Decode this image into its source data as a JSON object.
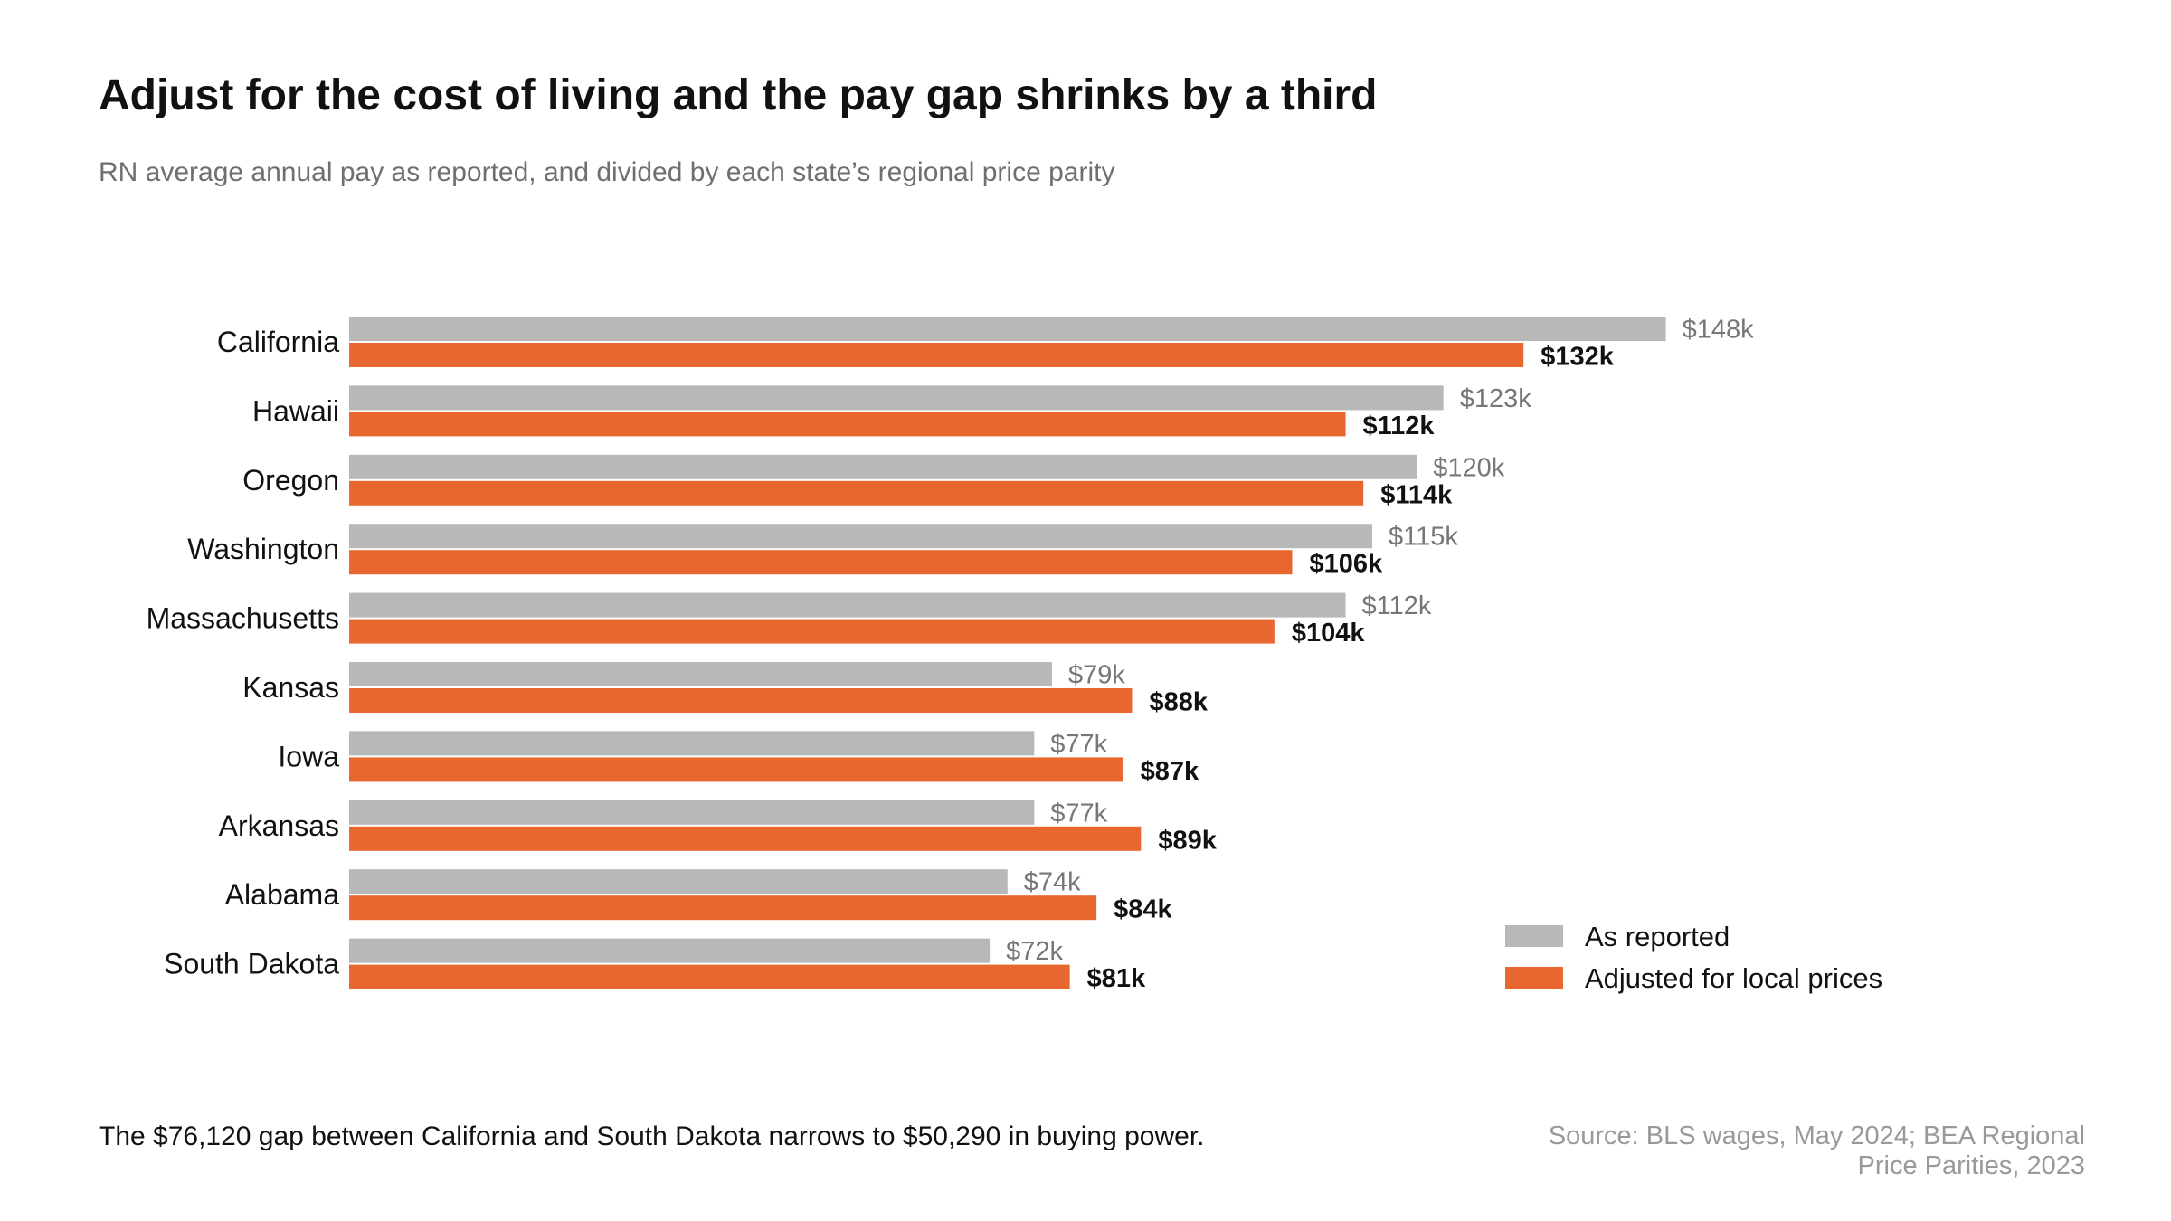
{
  "header": {
    "title": "Adjust for the cost of living and the pay gap shrinks by a third",
    "subtitle": "RN average annual pay as reported, and divided by each state’s regional price parity"
  },
  "footer": {
    "note": "The $76,120 gap between California and South Dakota narrows to $50,290 in buying power.",
    "source": "Source: BLS wages, May 2024; BEA Regional Price Parities, 2023"
  },
  "chart_data": {
    "type": "bar",
    "orientation": "horizontal",
    "title": "Adjust for the cost of living and the pay gap shrinks by a third",
    "subtitle": "RN average annual pay as reported, and divided by each state’s regional price parity",
    "categories": [
      "California",
      "Hawaii",
      "Oregon",
      "Washington",
      "Massachusetts",
      "Kansas",
      "Iowa",
      "Arkansas",
      "Alabama",
      "South Dakota"
    ],
    "series": [
      {
        "name": "As reported",
        "color": "#b8b8b8",
        "values": [
          148,
          123,
          120,
          115,
          112,
          79,
          77,
          77,
          74,
          72
        ],
        "labels": [
          "$148k",
          "$123k",
          "$120k",
          "$115k",
          "$112k",
          "$79k",
          "$77k",
          "$77k",
          "$74k",
          "$72k"
        ]
      },
      {
        "name": "Adjusted for local prices",
        "color": "#e8672e",
        "values": [
          132,
          112,
          114,
          106,
          104,
          88,
          87,
          89,
          84,
          81
        ],
        "labels": [
          "$132k",
          "$112k",
          "$114k",
          "$106k",
          "$104k",
          "$88k",
          "$87k",
          "$89k",
          "$84k",
          "$81k"
        ]
      }
    ],
    "xlim": [
      0,
      150
    ],
    "grid": false,
    "legend": "bottom-right"
  }
}
